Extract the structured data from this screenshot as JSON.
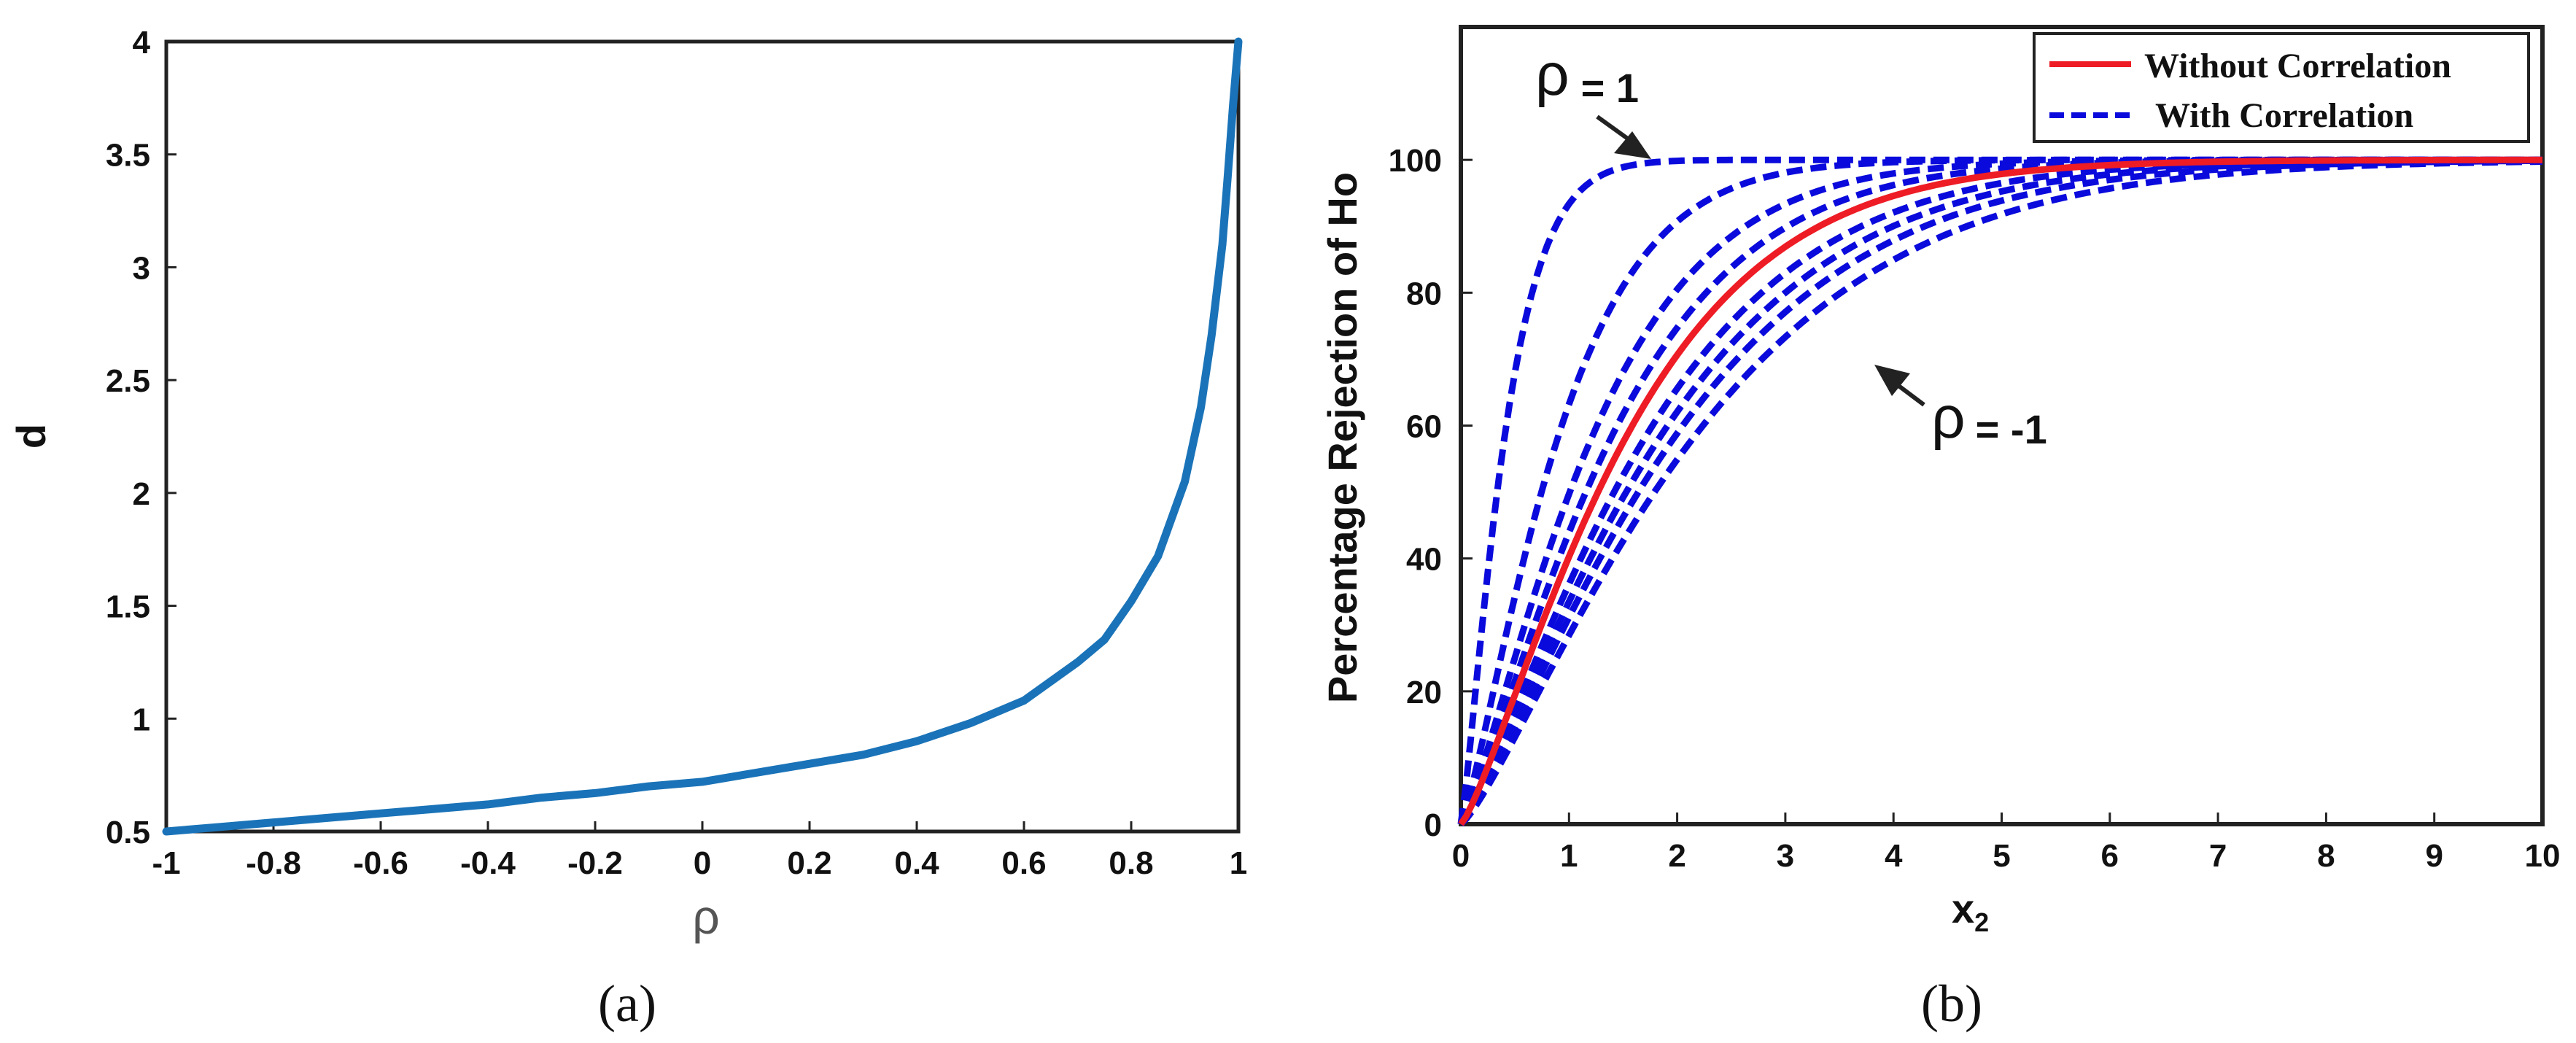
{
  "chart_data": [
    {
      "type": "line",
      "panel": "a",
      "caption": "(a)",
      "xlabel": "ρ",
      "ylabel": "d",
      "xlim": [
        -1,
        1
      ],
      "ylim": [
        0.5,
        4
      ],
      "xticks": [
        "-1",
        "-0.8",
        "-0.6",
        "-0.4",
        "-0.2",
        "0",
        "0.2",
        "0.4",
        "0.6",
        "0.8",
        "1"
      ],
      "yticks": [
        "0.5",
        "1",
        "1.5",
        "2",
        "2.5",
        "3",
        "3.5",
        "4"
      ],
      "grid": false,
      "series": [
        {
          "name": "d",
          "color": "#1a73b8",
          "x": [
            -1,
            -0.9,
            -0.8,
            -0.7,
            -0.6,
            -0.5,
            -0.4,
            -0.3,
            -0.2,
            -0.1,
            0,
            0.1,
            0.2,
            0.3,
            0.4,
            0.5,
            0.6,
            0.7,
            0.75,
            0.8,
            0.85,
            0.9,
            0.93,
            0.95,
            0.97,
            0.98,
            0.99,
            1.0
          ],
          "y": [
            0.5,
            0.52,
            0.54,
            0.56,
            0.58,
            0.6,
            0.62,
            0.65,
            0.67,
            0.7,
            0.72,
            0.76,
            0.8,
            0.84,
            0.9,
            0.98,
            1.08,
            1.25,
            1.35,
            1.52,
            1.72,
            2.05,
            2.38,
            2.7,
            3.1,
            3.4,
            3.72,
            4.0
          ]
        }
      ]
    },
    {
      "type": "line",
      "panel": "b",
      "caption": "(b)",
      "xlabel": "x",
      "xlabel_sub": "2",
      "ylabel": "Percentage Rejection of Ho",
      "xlim": [
        0,
        10
      ],
      "ylim": [
        0,
        120
      ],
      "xticks": [
        "0",
        "1",
        "2",
        "3",
        "4",
        "5",
        "6",
        "7",
        "8",
        "9",
        "10"
      ],
      "yticks": [
        "0",
        "20",
        "40",
        "60",
        "80",
        "100"
      ],
      "grid": false,
      "legend": {
        "position": "top-right",
        "entries": [
          {
            "label": "Without Correlation",
            "color": "#ee1c25",
            "style": "solid"
          },
          {
            "label": "With Correlation",
            "color": "#0a0adc",
            "style": "dashed"
          }
        ]
      },
      "annotations": [
        {
          "symbol": "ρ",
          "text": "= 1",
          "points_to": [
            1.6,
            100
          ]
        },
        {
          "symbol": "ρ",
          "text": "= -1",
          "points_to": [
            3.9,
            68
          ]
        }
      ],
      "series": [
        {
          "name": "Without Correlation",
          "color": "#ee1c25",
          "style": "solid",
          "scale": 1.7
        },
        {
          "name": "With Correlation ρ=1",
          "color": "#0a0adc",
          "style": "dashed",
          "scale": 0.45
        },
        {
          "name": "With Correlation",
          "color": "#0a0adc",
          "style": "dashed",
          "scale": 1.0
        },
        {
          "name": "With Correlation",
          "color": "#0a0adc",
          "style": "dashed",
          "scale": 1.35
        },
        {
          "name": "With Correlation",
          "color": "#0a0adc",
          "style": "dashed",
          "scale": 1.55
        },
        {
          "name": "With Correlation",
          "color": "#0a0adc",
          "style": "dashed",
          "scale": 1.9
        },
        {
          "name": "With Correlation",
          "color": "#0a0adc",
          "style": "dashed",
          "scale": 2.05
        },
        {
          "name": "With Correlation",
          "color": "#0a0adc",
          "style": "dashed",
          "scale": 2.2
        },
        {
          "name": "With Correlation ρ=-1",
          "color": "#0a0adc",
          "style": "dashed",
          "scale": 2.4
        }
      ]
    }
  ]
}
